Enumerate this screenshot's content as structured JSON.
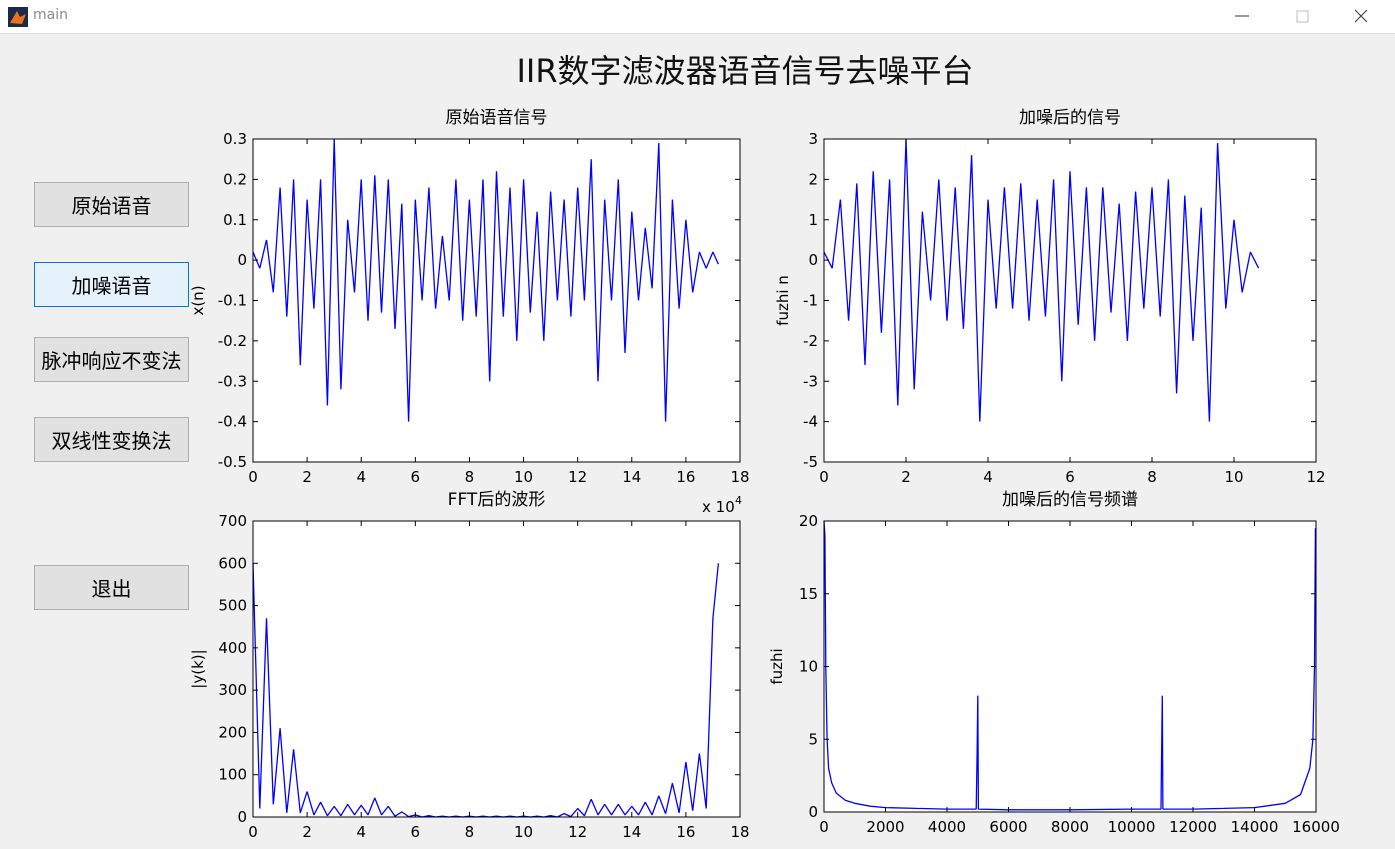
{
  "window": {
    "title": "main"
  },
  "title": "IIR数字滤波器语音信号去噪平台",
  "buttons": [
    {
      "label": "原始语音"
    },
    {
      "label": "加噪语音",
      "active": true
    },
    {
      "label": "脉冲响应不变法"
    },
    {
      "label": "双线性变换法"
    },
    {
      "label": "退出"
    }
  ],
  "chart_data": [
    {
      "type": "line",
      "title": "原始语音信号",
      "ylabel": "x(n)",
      "x_scale_label": "x 10",
      "x_scale_exponent": "4",
      "color": "#0000ff",
      "xlim": [
        0,
        18
      ],
      "xticks": [
        0,
        2,
        4,
        6,
        8,
        10,
        12,
        14,
        16,
        18
      ],
      "ylim": [
        -0.5,
        0.3
      ],
      "yticks": [
        -0.5,
        -0.4,
        -0.3,
        -0.2,
        -0.1,
        0,
        0.1,
        0.2,
        0.3
      ],
      "x": [
        0,
        0.25,
        0.5,
        0.75,
        1,
        1.25,
        1.5,
        1.75,
        2,
        2.25,
        2.5,
        2.75,
        3,
        3.25,
        3.5,
        3.75,
        4,
        4.25,
        4.5,
        4.75,
        5,
        5.25,
        5.5,
        5.75,
        6,
        6.25,
        6.5,
        6.75,
        7,
        7.25,
        7.5,
        7.75,
        8,
        8.25,
        8.5,
        8.75,
        9,
        9.25,
        9.5,
        9.75,
        10,
        10.25,
        10.5,
        10.75,
        11,
        11.25,
        11.5,
        11.75,
        12,
        12.25,
        12.5,
        12.75,
        13,
        13.25,
        13.5,
        13.75,
        14,
        14.25,
        14.5,
        14.75,
        15,
        15.25,
        15.5,
        15.75,
        16,
        16.25,
        16.5,
        16.75,
        17,
        17.2
      ],
      "values": [
        0.02,
        -0.02,
        0.05,
        -0.08,
        0.18,
        -0.14,
        0.2,
        -0.26,
        0.15,
        -0.12,
        0.2,
        -0.36,
        0.3,
        -0.32,
        0.1,
        -0.08,
        0.2,
        -0.15,
        0.21,
        -0.13,
        0.2,
        -0.17,
        0.14,
        -0.4,
        0.15,
        -0.1,
        0.18,
        -0.12,
        0.06,
        -0.1,
        0.2,
        -0.15,
        0.15,
        -0.14,
        0.2,
        -0.3,
        0.22,
        -0.14,
        0.18,
        -0.2,
        0.2,
        -0.13,
        0.12,
        -0.2,
        0.17,
        -0.1,
        0.15,
        -0.14,
        0.18,
        -0.1,
        0.25,
        -0.3,
        0.15,
        -0.1,
        0.2,
        -0.23,
        0.12,
        -0.1,
        0.08,
        -0.07,
        0.29,
        -0.4,
        0.15,
        -0.12,
        0.1,
        -0.08,
        0.02,
        -0.02,
        0.02,
        -0.01
      ]
    },
    {
      "type": "line",
      "title": "加噪后的信号",
      "ylabel": "fuzhi n",
      "color": "#0000ff",
      "xlim": [
        0,
        12
      ],
      "xticks": [
        0,
        2,
        4,
        6,
        8,
        10,
        12
      ],
      "ylim": [
        -5,
        3
      ],
      "yticks": [
        -5,
        -4,
        -3,
        -2,
        -1,
        0,
        1,
        2,
        3
      ],
      "x": [
        0,
        0.2,
        0.4,
        0.6,
        0.8,
        1,
        1.2,
        1.4,
        1.6,
        1.8,
        2,
        2.2,
        2.4,
        2.6,
        2.8,
        3,
        3.2,
        3.4,
        3.6,
        3.8,
        4,
        4.2,
        4.4,
        4.6,
        4.8,
        5,
        5.2,
        5.4,
        5.6,
        5.8,
        6,
        6.2,
        6.4,
        6.6,
        6.8,
        7,
        7.2,
        7.4,
        7.6,
        7.8,
        8,
        8.2,
        8.4,
        8.6,
        8.8,
        9,
        9.2,
        9.4,
        9.6,
        9.8,
        10,
        10.2,
        10.4,
        10.6
      ],
      "values": [
        0.2,
        -0.2,
        1.5,
        -1.5,
        1.9,
        -2.6,
        2.2,
        -1.8,
        2,
        -3.6,
        3,
        -3.2,
        1.2,
        -1,
        2,
        -1.5,
        1.8,
        -1.7,
        2.6,
        -4,
        1.5,
        -1.2,
        1.8,
        -1.2,
        1.9,
        -1.5,
        1.5,
        -1.4,
        2,
        -3,
        2.2,
        -1.6,
        1.8,
        -2,
        1.8,
        -1.3,
        1.4,
        -2,
        1.7,
        -1.2,
        1.8,
        -1.4,
        2,
        -3.3,
        1.6,
        -2,
        1.3,
        -4,
        2.9,
        -1.2,
        1,
        -0.8,
        0.2,
        -0.2
      ]
    },
    {
      "type": "line",
      "title": "FFT后的波形",
      "ylabel": "|y(k)|",
      "color": "#0000ff",
      "xlim": [
        0,
        18
      ],
      "xticks": [
        0,
        2,
        4,
        6,
        8,
        10,
        12,
        14,
        16,
        18
      ],
      "ylim": [
        0,
        700
      ],
      "yticks": [
        0,
        100,
        200,
        300,
        400,
        500,
        600,
        700
      ],
      "x": [
        0,
        0.25,
        0.5,
        0.75,
        1,
        1.25,
        1.5,
        1.75,
        2,
        2.25,
        2.5,
        2.75,
        3,
        3.25,
        3.5,
        3.75,
        4,
        4.25,
        4.5,
        4.75,
        5,
        5.25,
        5.5,
        5.75,
        6,
        6.25,
        6.5,
        6.75,
        7,
        7.25,
        7.5,
        7.75,
        8,
        8.25,
        8.5,
        8.75,
        9,
        9.25,
        9.5,
        9.75,
        10,
        10.25,
        10.5,
        10.75,
        11,
        11.25,
        11.5,
        11.75,
        12,
        12.25,
        12.5,
        12.75,
        13,
        13.25,
        13.5,
        13.75,
        14,
        14.25,
        14.5,
        14.75,
        15,
        15.25,
        15.5,
        15.75,
        16,
        16.25,
        16.5,
        16.75,
        17,
        17.2
      ],
      "values": [
        600,
        20,
        470,
        30,
        210,
        10,
        160,
        10,
        60,
        5,
        35,
        3,
        25,
        3,
        30,
        5,
        28,
        5,
        45,
        5,
        25,
        2,
        12,
        1,
        5,
        0,
        3,
        0,
        2,
        0,
        2,
        0,
        2,
        0,
        2,
        0,
        2,
        0,
        2,
        0,
        2,
        0,
        2,
        0,
        3,
        0,
        8,
        1,
        20,
        3,
        42,
        5,
        30,
        5,
        30,
        5,
        25,
        5,
        35,
        5,
        50,
        8,
        80,
        10,
        130,
        15,
        150,
        20,
        470,
        600
      ]
    },
    {
      "type": "line",
      "title": "加噪后的信号频谱",
      "ylabel": "fuzhi",
      "color": "#0000ff",
      "xlim": [
        0,
        16000
      ],
      "xticks": [
        0,
        2000,
        4000,
        6000,
        8000,
        10000,
        12000,
        14000,
        16000
      ],
      "ylim": [
        0,
        20
      ],
      "yticks": [
        0,
        5,
        10,
        15,
        20
      ],
      "x": [
        0,
        30,
        60,
        100,
        150,
        250,
        400,
        700,
        1000,
        1500,
        2000,
        3000,
        4000,
        4950,
        4980,
        5000,
        5020,
        6000,
        8000,
        10000,
        10960,
        10980,
        11000,
        11020,
        12000,
        13000,
        14000,
        15000,
        15500,
        15800,
        15900,
        15950,
        15980
      ],
      "values": [
        20,
        19,
        10,
        5,
        3,
        2,
        1.3,
        0.8,
        0.6,
        0.4,
        0.3,
        0.25,
        0.2,
        0.2,
        4,
        8,
        0.2,
        0.15,
        0.15,
        0.2,
        0.2,
        4,
        8,
        0.2,
        0.2,
        0.25,
        0.3,
        0.6,
        1.2,
        3,
        5,
        10,
        19.5
      ]
    }
  ]
}
